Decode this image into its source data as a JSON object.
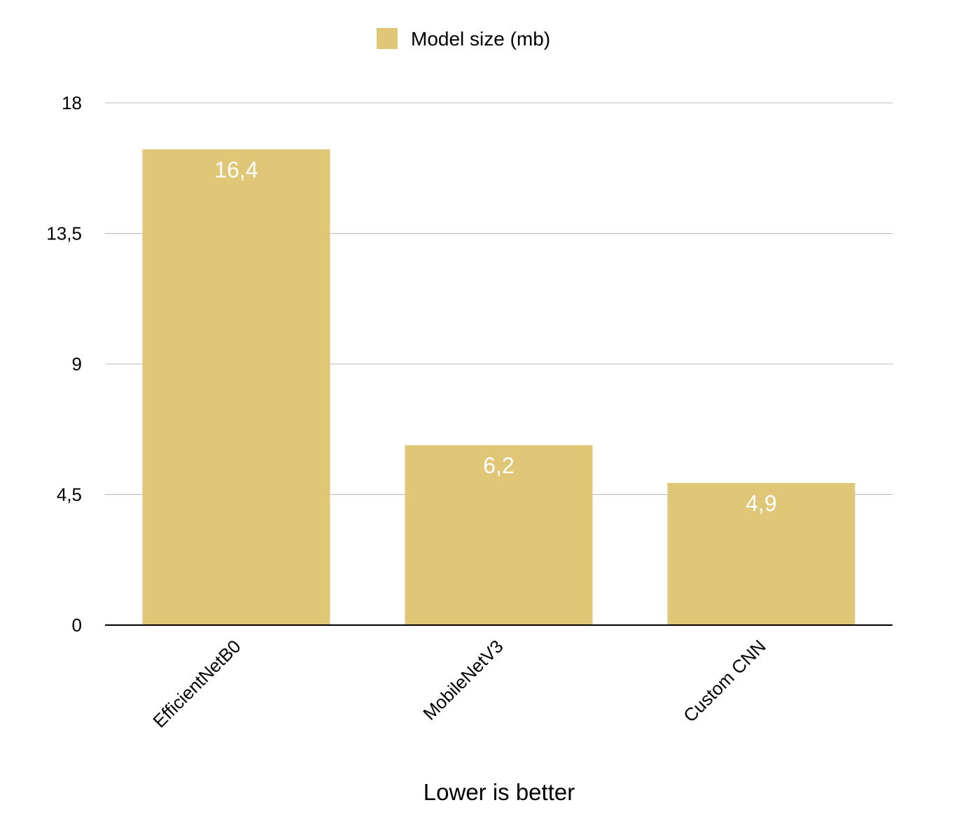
{
  "chart_data": {
    "type": "bar",
    "categories": [
      "EfficientNetB0",
      "MobileNetV3",
      "Custom CNN"
    ],
    "series": [
      {
        "name": "Model size (mb)",
        "values": [
          16.4,
          6.2,
          4.9
        ],
        "color": "#E0C677"
      }
    ],
    "data_labels": [
      "16,4",
      "6,2",
      "4,9"
    ],
    "yticks": [
      0,
      4.5,
      9,
      13.5,
      18
    ],
    "ytick_labels": [
      "0",
      "4,5",
      "9",
      "13,5",
      "18"
    ],
    "ylim": [
      0,
      18
    ],
    "xlabel": "Lower is better",
    "ylabel": "",
    "title": "",
    "legend_position": "top-center",
    "grid": true,
    "gridline_color": "#BBBBBB",
    "axis_color": "#000000",
    "value_label_color": "#FFFFFF"
  }
}
